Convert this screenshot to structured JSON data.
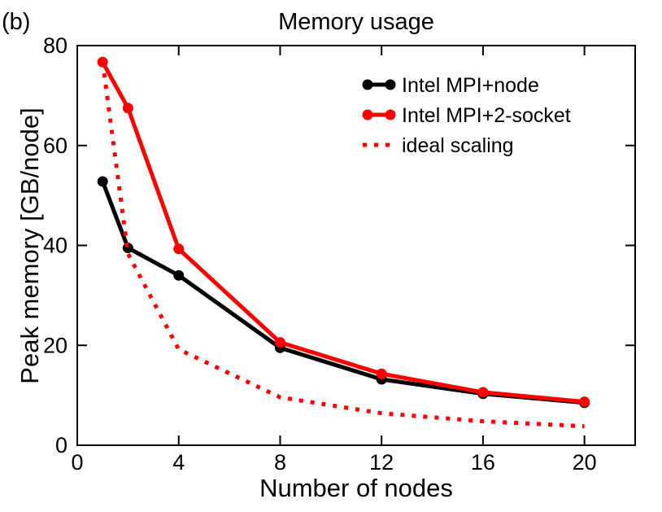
{
  "panel_label": "(b)",
  "chart_data": {
    "type": "line",
    "title": "Memory usage",
    "xlabel": "Number of nodes",
    "ylabel": "Peak memory [GB/node]",
    "xlim": [
      0,
      22
    ],
    "ylim": [
      0,
      80
    ],
    "xticks": [
      0,
      4,
      8,
      12,
      16,
      20
    ],
    "yticks": [
      0,
      20,
      40,
      60,
      80
    ],
    "grid": false,
    "legend_position": "top-right",
    "series": [
      {
        "name": "Intel MPI+node",
        "color": "#000000",
        "style": "solid",
        "markers": true,
        "x": [
          1,
          2,
          4,
          8,
          12,
          16,
          20
        ],
        "y": [
          52.8,
          39.5,
          34.0,
          19.5,
          13.2,
          10.3,
          8.5
        ]
      },
      {
        "name": "Intel MPI+2-socket",
        "color": "#ff0000",
        "style": "solid",
        "markers": true,
        "x": [
          1,
          2,
          4,
          8,
          12,
          16,
          20
        ],
        "y": [
          76.7,
          67.5,
          39.3,
          20.6,
          14.3,
          10.6,
          8.7
        ]
      },
      {
        "name": "ideal scaling",
        "color": "#ff0000",
        "style": "dotted",
        "markers": false,
        "x": [
          1,
          2,
          4,
          8,
          12,
          16,
          20
        ],
        "y": [
          76.7,
          38.35,
          19.2,
          9.6,
          6.4,
          4.8,
          3.8
        ]
      }
    ]
  }
}
